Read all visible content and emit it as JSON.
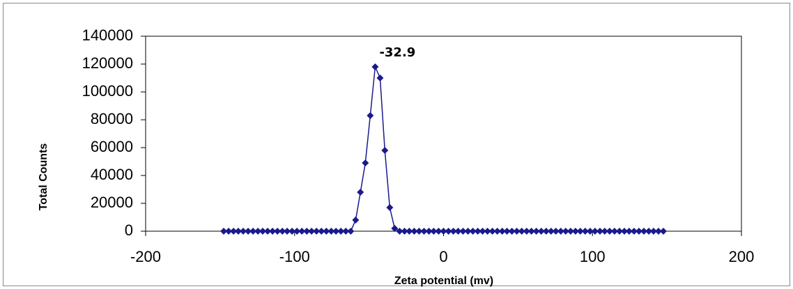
{
  "chart_data": {
    "type": "scatter-line",
    "x_label": "Zeta potential (mv)",
    "y_label": "Total Counts",
    "annotation": "-32.9",
    "color": "#1a1a8c",
    "xlim": [
      -200,
      200
    ],
    "xticks": [
      -200,
      -100,
      0,
      100,
      200
    ],
    "ylim": [
      0,
      140000
    ],
    "yticks": [
      0,
      20000,
      40000,
      60000,
      80000,
      100000,
      120000,
      140000
    ],
    "x": [
      -147.6,
      -144.3,
      -141.0,
      -137.8,
      -134.5,
      -131.2,
      -127.9,
      -124.6,
      -121.4,
      -118.1,
      -114.8,
      -111.5,
      -108.2,
      -105.0,
      -101.7,
      -98.4,
      -95.1,
      -91.8,
      -88.6,
      -85.3,
      -82.0,
      -78.7,
      -75.4,
      -72.2,
      -68.9,
      -65.6,
      -62.3,
      -59.0,
      -55.8,
      -52.5,
      -49.2,
      -45.9,
      -42.6,
      -39.4,
      -36.1,
      -32.8,
      -29.5,
      -26.2,
      -23.0,
      -19.7,
      -16.4,
      -13.1,
      -9.8,
      -6.6,
      -3.3,
      0.0,
      3.3,
      6.6,
      9.8,
      13.1,
      16.4,
      19.7,
      23.0,
      26.2,
      29.5,
      32.8,
      36.1,
      39.4,
      42.6,
      45.9,
      49.2,
      52.5,
      55.8,
      59.0,
      62.3,
      65.6,
      68.9,
      72.2,
      75.4,
      78.7,
      82.0,
      85.3,
      88.6,
      91.8,
      95.1,
      98.4,
      101.7,
      105.0,
      108.2,
      111.5,
      114.8,
      118.1,
      121.4,
      124.6,
      127.9,
      131.2,
      134.5,
      137.8,
      141.0,
      144.3,
      147.6
    ],
    "values": [
      0,
      0,
      0,
      0,
      0,
      0,
      0,
      0,
      0,
      0,
      0,
      0,
      0,
      0,
      0,
      0,
      0,
      0,
      0,
      0,
      0,
      0,
      0,
      0,
      0,
      0,
      0,
      8000,
      28000,
      49000,
      83000,
      118000,
      110000,
      58000,
      17000,
      2000,
      0,
      0,
      0,
      0,
      0,
      0,
      0,
      0,
      0,
      0,
      0,
      0,
      0,
      0,
      0,
      0,
      0,
      0,
      0,
      0,
      0,
      0,
      0,
      0,
      0,
      0,
      0,
      0,
      0,
      0,
      0,
      0,
      0,
      0,
      0,
      0,
      0,
      0,
      0,
      0,
      0,
      0,
      0,
      0,
      0,
      0,
      0,
      0,
      0,
      0,
      0,
      0,
      0,
      0,
      0
    ]
  }
}
